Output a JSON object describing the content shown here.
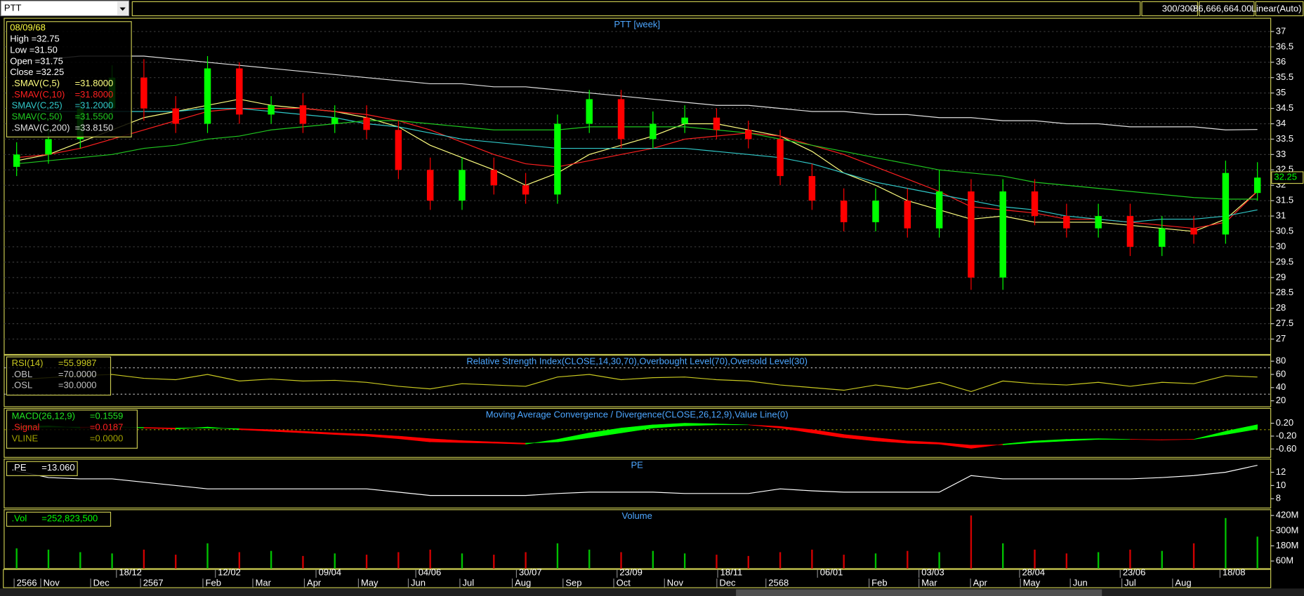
{
  "toolbar": {
    "symbol": "PTT",
    "count": "300/300",
    "value": "-86,666,664.00",
    "scale": "Linear(Auto)"
  },
  "time_axis": {
    "dates": [
      "18/12",
      "12/02",
      "09/04",
      "04/06",
      "30/07",
      "23/09",
      "18/11",
      "06/01",
      "03/03",
      "28/04",
      "23/06",
      "18/08"
    ],
    "months": [
      "2566",
      "Nov",
      "Dec",
      "2567",
      "Feb",
      "Mar",
      "Apr",
      "May",
      "Jun",
      "Jul",
      "Aug",
      "Sep",
      "Oct",
      "Nov",
      "Dec",
      "2568",
      "Feb",
      "Mar",
      "Apr",
      "May",
      "Jun",
      "Jul",
      "Aug"
    ]
  },
  "chart_data": [
    {
      "type": "candlestick",
      "title": "PTT [week]",
      "info": [
        "08/09/68",
        "High =32.75",
        "Low  =31.50",
        "Open  =31.75",
        "Close  =32.25"
      ],
      "up_color": "#00ff00",
      "down_color": "#ff0000",
      "doji_color": "#ffff40",
      "open": [
        32.6,
        33.0,
        33.5,
        34.5,
        35.5,
        34.5,
        34.0,
        35.8,
        34.3,
        34.6,
        34.0,
        34.2,
        33.8,
        32.5,
        31.5,
        32.5,
        32.0,
        31.7,
        34.0,
        34.8,
        33.5,
        34.0,
        34.2,
        33.8,
        33.5,
        32.3,
        31.5,
        30.8,
        31.5,
        30.6,
        31.8,
        29.0,
        31.8,
        31.0,
        30.6,
        31.0,
        30.0,
        30.6,
        30.4,
        31.75
      ],
      "high": [
        33.4,
        33.9,
        34.9,
        35.9,
        36.1,
        34.9,
        36.2,
        36.0,
        34.9,
        35.0,
        34.6,
        34.6,
        34.1,
        32.9,
        32.9,
        32.9,
        32.4,
        34.3,
        35.1,
        35.1,
        34.4,
        34.6,
        34.5,
        34.1,
        33.8,
        32.7,
        31.9,
        31.9,
        31.9,
        32.5,
        32.2,
        32.2,
        32.2,
        31.4,
        31.4,
        31.4,
        31.0,
        31.0,
        32.8,
        32.75
      ],
      "low": [
        32.3,
        32.7,
        33.2,
        34.2,
        34.1,
        33.7,
        33.7,
        34.0,
        34.0,
        33.7,
        33.7,
        33.5,
        32.2,
        31.2,
        31.2,
        31.7,
        31.4,
        31.4,
        33.7,
        33.2,
        33.2,
        33.7,
        33.5,
        33.2,
        32.0,
        31.2,
        30.5,
        30.5,
        30.3,
        30.3,
        28.6,
        28.6,
        30.7,
        30.3,
        30.3,
        29.7,
        29.7,
        30.1,
        30.1,
        31.5
      ],
      "close": [
        33.0,
        33.5,
        34.5,
        35.5,
        34.5,
        34.0,
        35.8,
        34.3,
        34.6,
        34.0,
        34.2,
        33.8,
        32.5,
        31.5,
        32.5,
        32.0,
        31.7,
        34.0,
        34.8,
        33.5,
        34.0,
        34.2,
        33.8,
        33.5,
        32.3,
        31.5,
        30.8,
        31.5,
        30.6,
        31.8,
        29.0,
        31.8,
        31.0,
        30.6,
        31.0,
        30.0,
        30.6,
        30.4,
        32.4,
        32.25
      ],
      "series": [
        {
          "name": ".SMAV(C,5)",
          "label": "=31.8000",
          "color": "#ffff80",
          "values": [
            32.8,
            33.0,
            33.4,
            33.8,
            34.2,
            34.4,
            34.6,
            34.8,
            34.6,
            34.5,
            34.4,
            34.2,
            33.9,
            33.3,
            32.9,
            32.5,
            32.0,
            32.4,
            33.0,
            33.3,
            33.6,
            34.0,
            34.0,
            33.8,
            33.6,
            33.1,
            32.4,
            32.0,
            31.5,
            31.2,
            30.9,
            31.0,
            30.8,
            30.8,
            30.8,
            30.7,
            30.6,
            30.5,
            30.9,
            31.8
          ]
        },
        {
          "name": ".SMAV(C,10)",
          "label": "=31.8000",
          "color": "#ff2020",
          "values": [
            32.9,
            33.0,
            33.2,
            33.5,
            33.8,
            34.1,
            34.4,
            34.5,
            34.5,
            34.5,
            34.4,
            34.3,
            34.1,
            33.8,
            33.4,
            33.0,
            32.7,
            32.6,
            32.8,
            33.0,
            33.2,
            33.5,
            33.6,
            33.7,
            33.6,
            33.3,
            33.0,
            32.6,
            32.2,
            31.8,
            31.3,
            31.2,
            31.1,
            30.9,
            30.9,
            30.8,
            30.7,
            30.6,
            30.8,
            31.8
          ]
        },
        {
          "name": "SMAV(C,25)",
          "label": "=31.2000",
          "color": "#30c8c8",
          "values": [
            34.5,
            34.4,
            34.4,
            34.4,
            34.4,
            34.4,
            34.5,
            34.5,
            34.4,
            34.3,
            34.2,
            34.0,
            33.9,
            33.7,
            33.5,
            33.4,
            33.3,
            33.2,
            33.2,
            33.2,
            33.2,
            33.2,
            33.1,
            33.0,
            32.9,
            32.7,
            32.4,
            32.1,
            31.9,
            31.7,
            31.5,
            31.3,
            31.2,
            31.0,
            30.9,
            30.8,
            30.9,
            30.9,
            31.0,
            31.2
          ]
        },
        {
          "name": "SMAV(C,50)",
          "label": "=31.5500",
          "color": "#20c820",
          "values": [
            32.7,
            32.8,
            32.9,
            33.0,
            33.2,
            33.3,
            33.5,
            33.6,
            33.8,
            33.9,
            34.0,
            34.1,
            34.1,
            34.0,
            33.9,
            33.8,
            33.8,
            33.8,
            33.9,
            33.9,
            33.9,
            33.9,
            33.8,
            33.7,
            33.5,
            33.3,
            33.1,
            32.9,
            32.7,
            32.5,
            32.4,
            32.3,
            32.1,
            32.0,
            31.9,
            31.8,
            31.7,
            31.6,
            31.55,
            31.55
          ]
        },
        {
          "name": ".SMAV(C,200)",
          "label": "=33.8150",
          "color": "#e0e0e0",
          "values": [
            36.0,
            36.1,
            36.2,
            36.2,
            36.2,
            36.1,
            36.0,
            35.9,
            35.8,
            35.7,
            35.6,
            35.5,
            35.4,
            35.3,
            35.3,
            35.2,
            35.2,
            35.1,
            35.0,
            34.9,
            34.8,
            34.7,
            34.6,
            34.6,
            34.5,
            34.4,
            34.4,
            34.3,
            34.3,
            34.2,
            34.2,
            34.1,
            34.1,
            34.0,
            34.0,
            33.9,
            33.9,
            33.9,
            33.8,
            33.815
          ]
        }
      ],
      "ylim": [
        26.5,
        37.43
      ],
      "yticks": [
        27,
        27.5,
        28,
        28.5,
        29,
        29.5,
        30,
        30.5,
        31,
        31.5,
        32,
        32.5,
        33,
        33.5,
        34,
        34.5,
        35,
        35.5,
        36,
        36.5,
        37
      ],
      "grid": true
    },
    {
      "type": "line",
      "title": "Relative Strength Index(CLOSE,14,30,70),Overbought Level(70),Oversold Level(30)",
      "series": [
        {
          "name": "RSI(14)",
          "label": "=55.9987",
          "color": "#c8c820",
          "values": [
            52,
            55,
            58,
            60,
            54,
            52,
            60,
            50,
            53,
            50,
            51,
            48,
            42,
            38,
            46,
            44,
            42,
            56,
            60,
            52,
            55,
            56,
            52,
            50,
            44,
            40,
            36,
            44,
            38,
            48,
            34,
            50,
            46,
            44,
            48,
            42,
            48,
            46,
            58,
            55.9987
          ]
        }
      ],
      "levels": [
        {
          "name": ".OBL",
          "label": "=70.0000",
          "value": 70,
          "color": "#c0c0c0"
        },
        {
          "name": ".OSL",
          "label": "=30.0000",
          "value": 30,
          "color": "#c0c0c0"
        }
      ],
      "ylim": [
        11,
        89
      ],
      "yticks": [
        20,
        40,
        60,
        80
      ]
    },
    {
      "type": "band",
      "title": "Moving Average Convergence / Divergence(CLOSE,26,12,9),Value Line(0)",
      "up_color": "#00ff00",
      "down_color": "#ff0000",
      "series": [
        {
          "name": "MACD(26,12,9)",
          "label": "=0.1559",
          "color": "#20e020",
          "values": [
            0.1,
            0.12,
            0.05,
            0.1,
            0.05,
            0.02,
            0.08,
            0.0,
            -0.05,
            -0.1,
            -0.15,
            -0.2,
            -0.28,
            -0.38,
            -0.4,
            -0.42,
            -0.45,
            -0.3,
            -0.1,
            0.05,
            0.15,
            0.2,
            0.18,
            0.15,
            0.05,
            -0.1,
            -0.25,
            -0.35,
            -0.42,
            -0.45,
            -0.58,
            -0.45,
            -0.35,
            -0.3,
            -0.28,
            -0.3,
            -0.32,
            -0.3,
            -0.05,
            0.1559
          ]
        },
        {
          "name": ".Signal",
          "label": "=0.0187",
          "color": "#ff2020",
          "values": [
            0.05,
            0.08,
            0.08,
            0.08,
            0.07,
            0.05,
            0.05,
            0.03,
            0.0,
            -0.05,
            -0.1,
            -0.14,
            -0.2,
            -0.28,
            -0.34,
            -0.38,
            -0.42,
            -0.38,
            -0.25,
            -0.1,
            0.05,
            0.12,
            0.15,
            0.15,
            0.1,
            0.0,
            -0.15,
            -0.25,
            -0.35,
            -0.4,
            -0.48,
            -0.47,
            -0.4,
            -0.35,
            -0.3,
            -0.3,
            -0.31,
            -0.3,
            -0.15,
            0.0187
          ]
        }
      ],
      "levels": [
        {
          "name": "VLINE",
          "label": "=0.0000",
          "value": 0,
          "color": "#a0a000"
        }
      ],
      "ylim": [
        -0.86,
        0.66
      ],
      "yticks": [
        {
          "value": 0.2,
          "label": "0.20"
        },
        {
          "value": -0.2,
          "label": "-0.20"
        },
        {
          "value": -0.6,
          "label": "-0.60"
        }
      ]
    },
    {
      "type": "line",
      "title": "PE",
      "series": [
        {
          "name": ".PE",
          "label": "=13.060",
          "color": "#ffffff",
          "values": [
            12.2,
            11.2,
            11,
            11,
            10.5,
            10,
            9.5,
            9.5,
            9.5,
            9.5,
            9.5,
            9.5,
            9,
            8.5,
            8.5,
            8.5,
            8.5,
            8.8,
            9,
            9,
            9,
            8.8,
            8.8,
            8.8,
            9.5,
            9.2,
            9,
            9,
            9,
            9,
            11.5,
            11,
            11,
            11,
            11,
            11,
            11.2,
            11.5,
            12.0,
            13.06
          ]
        }
      ],
      "ylim": [
        6.6,
        14
      ],
      "yticks": [
        8,
        10,
        12
      ]
    },
    {
      "type": "bar",
      "title": "Volume",
      "up_color": "#00c000",
      "down_color": "#d00000",
      "series": [
        {
          "name": ".Vol",
          "label": "=252,823,500",
          "color": "#00ff00",
          "values": [
            160000000,
            150000000,
            130000000,
            120000000,
            150000000,
            110000000,
            200000000,
            130000000,
            140000000,
            100000000,
            120000000,
            110000000,
            130000000,
            150000000,
            120000000,
            110000000,
            130000000,
            200000000,
            150000000,
            130000000,
            140000000,
            120000000,
            110000000,
            100000000,
            130000000,
            150000000,
            110000000,
            120000000,
            140000000,
            130000000,
            420000000,
            200000000,
            150000000,
            120000000,
            130000000,
            150000000,
            140000000,
            200000000,
            400000000,
            252823500
          ]
        }
      ],
      "ylim": [
        0,
        466000000
      ],
      "yticks": [
        {
          "value": 60000000,
          "label": "60M"
        },
        {
          "value": 180000000,
          "label": "180M"
        },
        {
          "value": 300000000,
          "label": "300M"
        },
        {
          "value": 420000000,
          "label": "420M"
        }
      ]
    }
  ]
}
